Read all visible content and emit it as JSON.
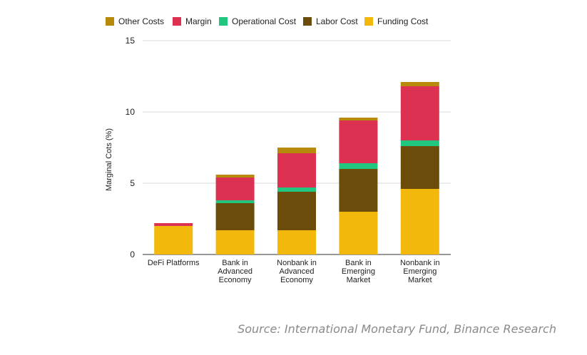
{
  "chart_data": {
    "type": "bar",
    "stacked": true,
    "categories": [
      [
        "DeFi Platforms"
      ],
      [
        "Bank in",
        "Advanced",
        "Economy"
      ],
      [
        "Nonbank in",
        "Advanced",
        "Economy"
      ],
      [
        "Bank in",
        "Emerging",
        "Market"
      ],
      [
        "Nonbank in",
        "Emerging",
        "Market"
      ]
    ],
    "series": [
      {
        "name": "Funding Cost",
        "color": "#F2B90C",
        "values": [
          2.0,
          1.7,
          1.7,
          3.0,
          4.6
        ]
      },
      {
        "name": "Labor Cost",
        "color": "#6B4C0A",
        "values": [
          0.0,
          1.9,
          2.7,
          3.0,
          3.0
        ]
      },
      {
        "name": "Operational Cost",
        "color": "#22C77F",
        "values": [
          0.0,
          0.2,
          0.3,
          0.4,
          0.4
        ]
      },
      {
        "name": "Margin",
        "color": "#DC3150",
        "values": [
          0.2,
          1.6,
          2.4,
          3.0,
          3.8
        ]
      },
      {
        "name": "Other Costs",
        "color": "#B88A0C",
        "values": [
          0.0,
          0.2,
          0.4,
          0.2,
          0.3
        ]
      }
    ],
    "legend_order": [
      "Other Costs",
      "Margin",
      "Operational Cost",
      "Labor Cost",
      "Funding Cost"
    ],
    "legend_position": "top",
    "ylabel": "Marginal Cots (%)",
    "xlabel": "",
    "ylim": [
      0,
      15
    ],
    "yticks": [
      0,
      5,
      10,
      15
    ],
    "grid": true
  },
  "source": "Source: International Monetary Fund, Binance Research"
}
